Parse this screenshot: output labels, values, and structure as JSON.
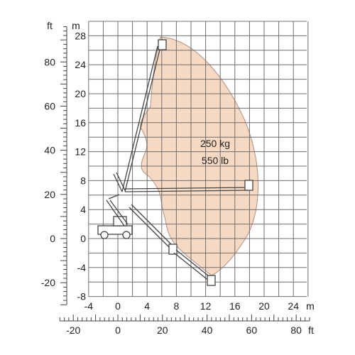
{
  "units": {
    "metres_vertical": "m",
    "feet_vertical": "ft",
    "metres_horizontal": "m",
    "feet_horizontal": "ft"
  },
  "axes": {
    "height_m": {
      "min": -8,
      "max": 30,
      "grid_step": 2,
      "labels": [
        "-8",
        "-4",
        "0",
        "4",
        "8",
        "12",
        "16",
        "20",
        "24",
        "28"
      ],
      "label_values": [
        -8,
        -4,
        0,
        4,
        8,
        12,
        16,
        20,
        24,
        28
      ]
    },
    "outreach_m": {
      "min": -4,
      "max": 26,
      "grid_step": 2,
      "labels": [
        "-4",
        "0",
        "4",
        "8",
        "12",
        "16",
        "20",
        "24"
      ],
      "label_values": [
        -4,
        0,
        4,
        8,
        12,
        16,
        20,
        24
      ]
    },
    "height_ft": {
      "labels": [
        "-20",
        "0",
        "20",
        "40",
        "60",
        "80"
      ],
      "label_values": [
        -20,
        0,
        20,
        40,
        60,
        80
      ]
    },
    "outreach_ft": {
      "labels": [
        "-20",
        "0",
        "20",
        "40",
        "60",
        "80"
      ],
      "label_values": [
        -20,
        0,
        20,
        40,
        60,
        80
      ]
    }
  },
  "capacity": {
    "weight_metric": "250 kg",
    "weight_imperial": "550 lb"
  },
  "colors": {
    "envelope_fill": "#f6d9c3",
    "envelope_stroke": "#b09080",
    "grid": "#6f6f6f",
    "boom": "#444444"
  }
}
